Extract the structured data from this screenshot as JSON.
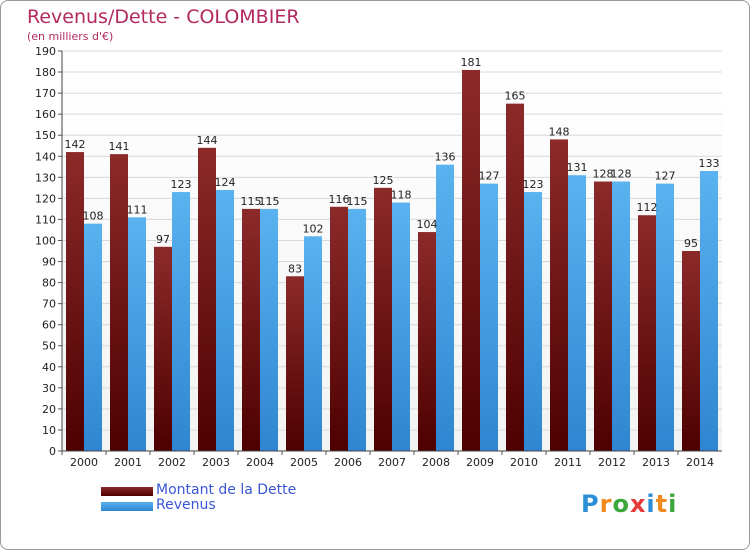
{
  "title": "Revenus/Dette - COLOMBIER",
  "subtitle": "(en milliers d'€)",
  "legend": {
    "items": [
      {
        "label": "Montant de la Dette",
        "color": "#7a1a1a"
      },
      {
        "label": "Revenus",
        "color": "#4aa3e6"
      }
    ]
  },
  "logo": {
    "text": "Proxiti"
  },
  "chart_data": {
    "type": "bar",
    "categories": [
      "2000",
      "2001",
      "2002",
      "2003",
      "2004",
      "2005",
      "2006",
      "2007",
      "2008",
      "2009",
      "2010",
      "2011",
      "2012",
      "2013",
      "2014"
    ],
    "series": [
      {
        "name": "Montant de la Dette",
        "values": [
          142,
          141,
          97,
          144,
          115,
          83,
          116,
          125,
          104,
          181,
          165,
          148,
          128,
          112,
          95
        ],
        "color": "#7a1a1a"
      },
      {
        "name": "Revenus",
        "values": [
          108,
          111,
          123,
          124,
          115,
          102,
          115,
          118,
          136,
          127,
          123,
          131,
          128,
          127,
          133
        ],
        "color": "#4aa3e6"
      }
    ],
    "ylim": [
      0,
      190
    ],
    "yticks": [
      0,
      10,
      20,
      30,
      40,
      50,
      60,
      70,
      80,
      90,
      100,
      110,
      120,
      130,
      140,
      150,
      160,
      170,
      180,
      190
    ],
    "grid": true,
    "legend_position": "bottom-left"
  }
}
